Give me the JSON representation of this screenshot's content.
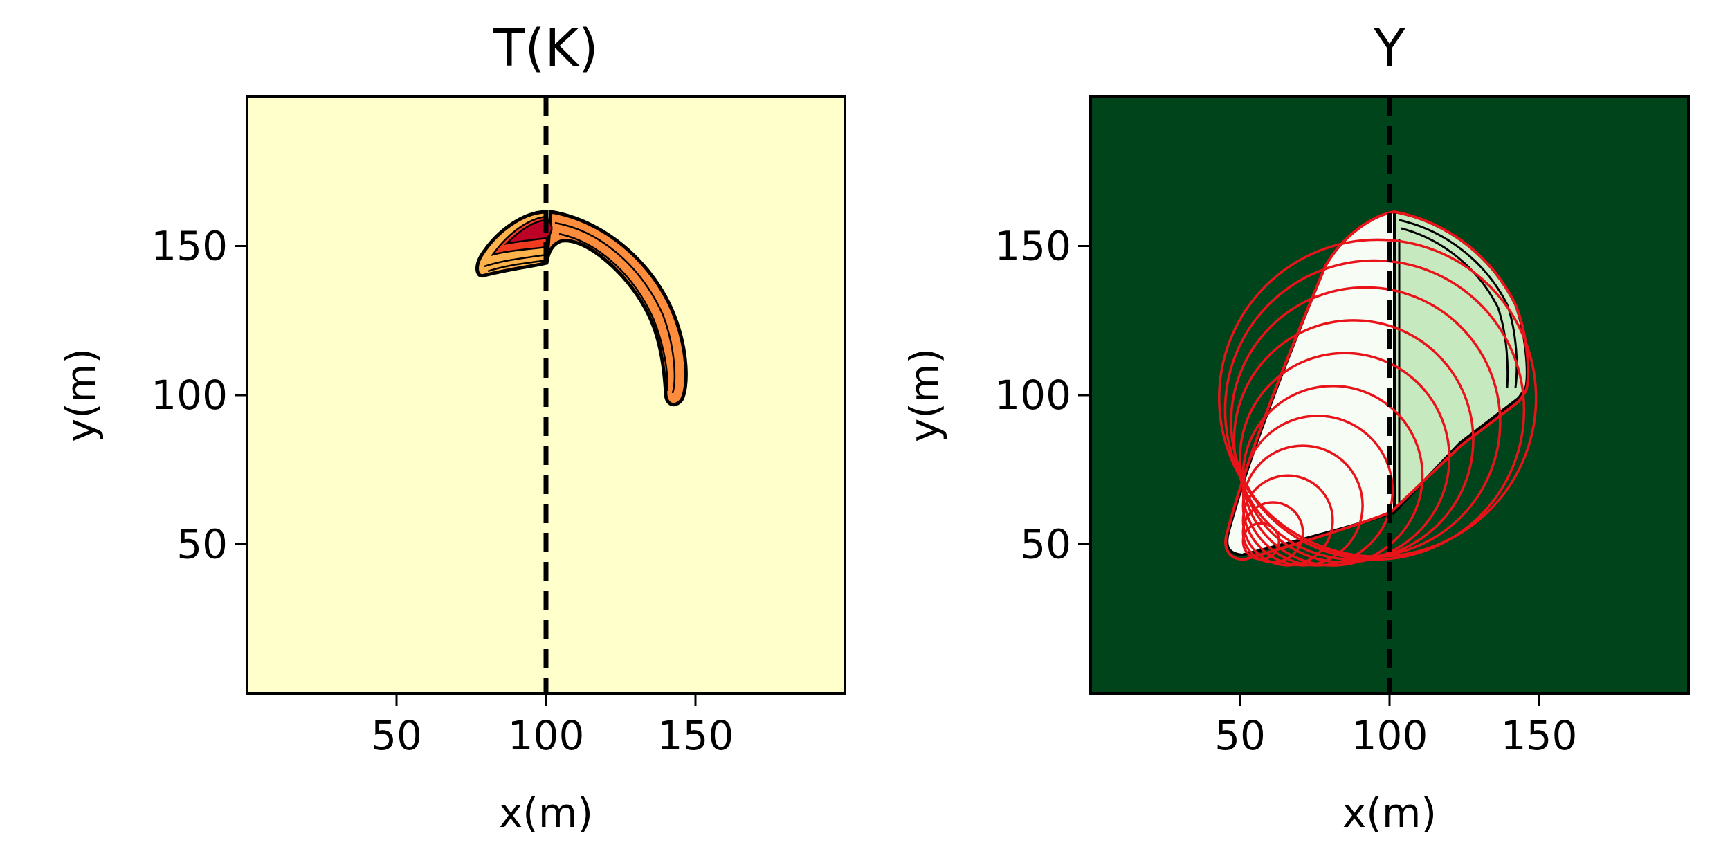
{
  "chart_data": [
    {
      "type": "contour",
      "title": "T(K)",
      "xlabel": "x(m)",
      "ylabel": "y(m)",
      "xlim": [
        0,
        200
      ],
      "ylim": [
        0,
        200
      ],
      "xticks": [
        50,
        100,
        150
      ],
      "yticks": [
        50,
        100,
        150
      ],
      "background_color": "#ffffcc",
      "vertical_reference_line": {
        "x": 100,
        "style": "dashed",
        "color": "#000000"
      },
      "fill_colors": [
        "#feb24c",
        "#fd8d3c",
        "#f03b20",
        "#bd0026"
      ]
    },
    {
      "type": "contour",
      "title": "Y",
      "xlabel": "x(m)",
      "ylabel": "y(m)",
      "xlim": [
        0,
        200
      ],
      "ylim": [
        0,
        200
      ],
      "xticks": [
        50,
        100,
        150
      ],
      "yticks": [
        50,
        100,
        150
      ],
      "background_color": "#00441b",
      "vertical_reference_line": {
        "x": 100,
        "style": "dashed",
        "color": "#000000"
      },
      "fill_colors": [
        "#f7fcf5",
        "#e5f5e0",
        "#c7e9c0"
      ],
      "red_isochrones": [
        {
          "cx": 57,
          "cy": 51,
          "r": 6
        },
        {
          "cx": 61,
          "cy": 54,
          "r": 10
        },
        {
          "cx": 66,
          "cy": 58,
          "r": 15
        },
        {
          "cx": 71,
          "cy": 63,
          "r": 20
        },
        {
          "cx": 76,
          "cy": 68,
          "r": 25
        },
        {
          "cx": 81,
          "cy": 73,
          "r": 30
        },
        {
          "cx": 85,
          "cy": 79,
          "r": 35
        },
        {
          "cx": 88,
          "cy": 85,
          "r": 40
        },
        {
          "cx": 92,
          "cy": 91,
          "r": 45
        },
        {
          "cx": 95,
          "cy": 95,
          "r": 50
        },
        {
          "cx": 96,
          "cy": 99,
          "r": 53
        }
      ]
    }
  ]
}
